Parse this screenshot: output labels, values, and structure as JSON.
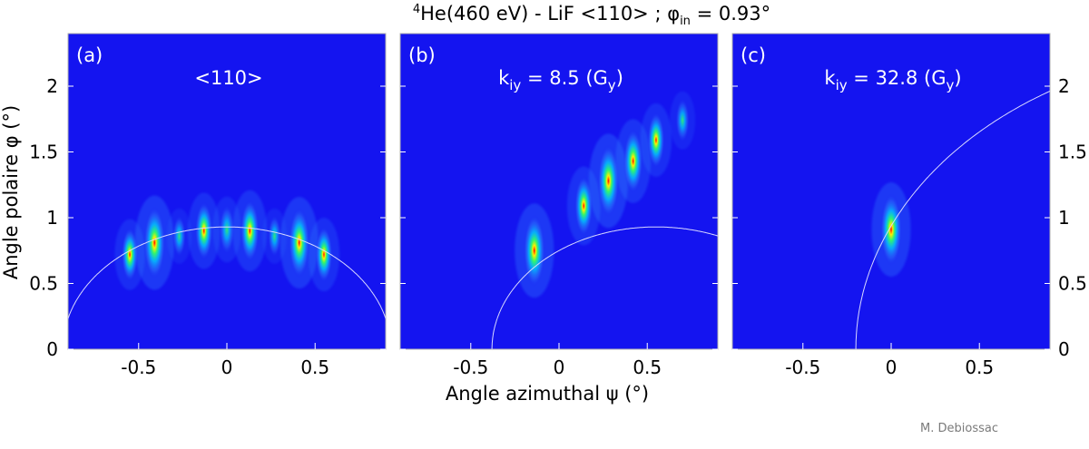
{
  "figure": {
    "title": "4He(460 eV) - LiF <110> ; φin = 0.93°",
    "title_parts": {
      "sup": "4",
      "main": "He(460 eV) - LiF <110> ; φ",
      "sub": "in",
      "tail": " = 0.93°"
    },
    "credit": "M. Debiossac"
  },
  "chart_data": {
    "type": "heatmap",
    "title": "4He(460 eV) - LiF <110> ; φin = 0.93°",
    "xlabel": "Angle azimuthal ψ (°)",
    "ylabel": "Angle polaire φ (°)",
    "xlim": [
      -0.9,
      0.9
    ],
    "ylim": [
      0,
      2.4
    ],
    "xticks": [
      -0.5,
      0,
      0.5
    ],
    "yticks": [
      0,
      0.5,
      1,
      1.5,
      2
    ],
    "xtick_labels": [
      "-0.5",
      "0",
      "0.5"
    ],
    "ytick_labels": [
      "0",
      "0.5",
      "1",
      "1.5",
      "2"
    ],
    "colors": {
      "background": "#1414f0",
      "ring": "#d8d8ff"
    },
    "panels": [
      {
        "label": "(a)",
        "annotation": {
          "main": "<110>",
          "sub": "",
          "tail": ""
        },
        "arc": {
          "center_x": 0,
          "center_y": 0,
          "radius": 0.93
        },
        "spots": [
          {
            "x": -0.55,
            "y": 0.72,
            "intensity": 0.55
          },
          {
            "x": -0.41,
            "y": 0.81,
            "intensity": 1.0
          },
          {
            "x": -0.27,
            "y": 0.86,
            "intensity": 0.25
          },
          {
            "x": -0.13,
            "y": 0.9,
            "intensity": 0.65
          },
          {
            "x": 0.0,
            "y": 0.91,
            "intensity": 0.45
          },
          {
            "x": 0.13,
            "y": 0.9,
            "intensity": 0.75
          },
          {
            "x": 0.27,
            "y": 0.86,
            "intensity": 0.25
          },
          {
            "x": 0.41,
            "y": 0.81,
            "intensity": 0.95
          },
          {
            "x": 0.55,
            "y": 0.72,
            "intensity": 0.6
          }
        ]
      },
      {
        "label": "(b)",
        "annotation": {
          "main": "k",
          "sub": "iy",
          "tail": " = 8.5 (G",
          "sub2": "y",
          "tail2": ")"
        },
        "arc": {
          "center_x": 0.55,
          "center_y": 0,
          "radius": 0.93
        },
        "spots": [
          {
            "x": -0.14,
            "y": 0.75,
            "intensity": 1.0
          },
          {
            "x": 0.14,
            "y": 1.09,
            "intensity": 0.7
          },
          {
            "x": 0.28,
            "y": 1.28,
            "intensity": 1.0
          },
          {
            "x": 0.42,
            "y": 1.43,
            "intensity": 0.8
          },
          {
            "x": 0.55,
            "y": 1.59,
            "intensity": 0.6
          },
          {
            "x": 0.7,
            "y": 1.74,
            "intensity": 0.3
          }
        ]
      },
      {
        "label": "(c)",
        "annotation": {
          "main": "k",
          "sub": "iy",
          "tail": " = 32.8 (G",
          "sub2": "y",
          "tail2": ")"
        },
        "arc": {
          "center_x": 2.1,
          "center_y": 0,
          "radius": 2.3
        },
        "spots": [
          {
            "x": 0.0,
            "y": 0.91,
            "intensity": 1.0
          }
        ]
      }
    ],
    "grid": false
  }
}
